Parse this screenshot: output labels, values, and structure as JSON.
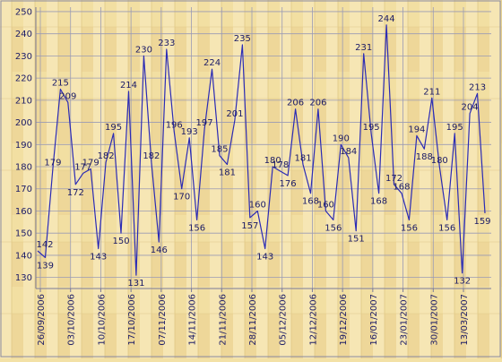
{
  "chart_data": {
    "type": "line",
    "title": "",
    "xlabel": "",
    "ylabel": "",
    "ylim": [
      125,
      252
    ],
    "yticks": [
      130,
      140,
      150,
      160,
      170,
      180,
      190,
      200,
      210,
      220,
      230,
      240,
      250
    ],
    "grid": true,
    "legend": "none",
    "x_tick_labels": [
      "26/09/2006",
      "03/10/2006",
      "10/10/2006",
      "17/10/2006",
      "07/11/2006",
      "14/11/2006",
      "21/11/2006",
      "28/11/2006",
      "05/12/2006",
      "12/12/2006",
      "19/12/2006",
      "16/01/2007",
      "23/01/2007",
      "30/01/2007",
      "13/03/2007"
    ],
    "series": [
      {
        "color": "#2b2bb5",
        "values": [
          142,
          139,
          179,
          215,
          209,
          172,
          177,
          179,
          143,
          182,
          195,
          150,
          214,
          131,
          230,
          182,
          146,
          233,
          196,
          170,
          193,
          156,
          197,
          224,
          185,
          181,
          201,
          235,
          157,
          160,
          143,
          180,
          178,
          176,
          206,
          181,
          168,
          206,
          160,
          156,
          190,
          184,
          151,
          231,
          195,
          168,
          244,
          172,
          168,
          156,
          194,
          188,
          211,
          180,
          156,
          195,
          132,
          204,
          213,
          159
        ],
        "labels": [
          "142",
          "139",
          "179",
          "215",
          "209",
          "172",
          "177",
          "179",
          "143",
          "182",
          "195",
          "150",
          "214",
          "131",
          "230",
          "182",
          "146",
          "233",
          "196",
          "170",
          "193",
          "156",
          "197",
          "224",
          "185",
          "181",
          "201",
          "235",
          "157",
          "160",
          "143",
          "180",
          "178",
          "176",
          "206",
          "181",
          "168",
          "206",
          "160",
          "156",
          "190",
          "184",
          "151",
          "231",
          "195",
          "168",
          "244",
          "172",
          "168",
          "156",
          "194",
          "188",
          "211",
          "180",
          "156",
          "195",
          "132",
          "204",
          "213",
          "159"
        ]
      }
    ],
    "colors": {
      "background": "#f3e1a6",
      "line": "#2b2bb5",
      "grid": "#9a9ab4",
      "text": "#1a1a66"
    }
  }
}
